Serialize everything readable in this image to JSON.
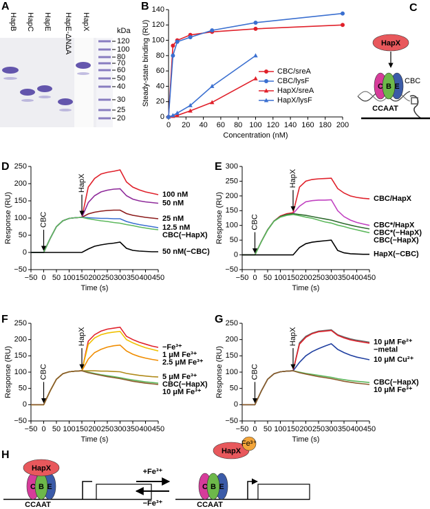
{
  "panel_a": {
    "label": "A",
    "lanes": [
      "HapB",
      "HapC",
      "HapE",
      "HapE-ΔNΔA",
      "HapX"
    ],
    "unit": "kDa",
    "markers": [
      120,
      100,
      80,
      70,
      60,
      50,
      40,
      30,
      25,
      20
    ]
  },
  "panel_c": {
    "label": "C",
    "protein": "HapX",
    "subunits": [
      "C",
      "B",
      "E"
    ],
    "complex": "CBC",
    "motif": "CCAAT"
  },
  "panel_h": {
    "label": "H",
    "left": {
      "protein": "HapX",
      "subunits": [
        "C",
        "B",
        "E"
      ],
      "motif": "CCAAT"
    },
    "forward": "+Fe³⁺",
    "reverse": "−Fe³⁺",
    "right": {
      "protein": "HapX",
      "ligand": "Fe³⁺",
      "subunits": [
        "C",
        "B",
        "E"
      ],
      "motif": "CCAAT"
    }
  },
  "chart_data": [
    {
      "type": "line",
      "panel_label": "B",
      "xlabel": "Concentration (nM)",
      "ylabel": "Steady-state binding (RU)",
      "x": [
        0,
        5,
        10,
        25,
        50,
        100,
        200
      ],
      "xlim": [
        0,
        200
      ],
      "xticks": [
        0,
        20,
        40,
        60,
        80,
        100,
        120,
        140,
        160,
        180,
        200
      ],
      "ylim": [
        0,
        140
      ],
      "yticks": [
        0,
        20,
        40,
        60,
        80,
        100,
        120,
        140
      ],
      "legend": "center right",
      "series": [
        {
          "name": "CBC/sreA",
          "color": "#e0202a",
          "marker": "circle",
          "values": [
            0,
            93,
            100,
            107,
            111,
            115,
            120
          ]
        },
        {
          "name": "CBC/lysF",
          "color": "#3a6fd0",
          "marker": "circle",
          "values": [
            0,
            80,
            98,
            104,
            113,
            123,
            135
          ]
        },
        {
          "name": "HapX/sreA",
          "color": "#e0202a",
          "marker": "triangle",
          "values": [
            0,
            1,
            2,
            8,
            19,
            50,
            null
          ]
        },
        {
          "name": "HapX/lysF",
          "color": "#3a6fd0",
          "marker": "triangle",
          "values": [
            0,
            2,
            5,
            15,
            40,
            80,
            null
          ]
        }
      ]
    },
    {
      "type": "line",
      "panel_label": "D",
      "xlabel": "Time (s)",
      "ylabel": "Response (RU)",
      "x": [
        -50,
        -25,
        0,
        25,
        50,
        75,
        100,
        125,
        150,
        175,
        200,
        225,
        250,
        275,
        300,
        325,
        350,
        375,
        400,
        425,
        450
      ],
      "xlim": [
        -50,
        450
      ],
      "xticks": [
        {
          "value": -50,
          "label": "−50"
        },
        0,
        50,
        100,
        150,
        200,
        250,
        300,
        350,
        400,
        450
      ],
      "ylim": [
        -50,
        250
      ],
      "yticks": [
        {
          "value": -50,
          "label": "−50"
        },
        0,
        50,
        100,
        150,
        200,
        250
      ],
      "legend": "right",
      "annotations": [
        {
          "text": "CBC",
          "x": 0
        },
        {
          "text": "HapX",
          "x": 150
        }
      ],
      "series": [
        {
          "name": "100 nM",
          "color": "#e0202a",
          "values": [
            0,
            0,
            0,
            40,
            75,
            92,
            99,
            101,
            102,
            190,
            215,
            228,
            233,
            236,
            240,
            205,
            190,
            182,
            176,
            172,
            168
          ]
        },
        {
          "name": "50 nM",
          "color": "#8e2a9a",
          "values": [
            0,
            0,
            0,
            40,
            75,
            92,
            99,
            101,
            102,
            145,
            165,
            176,
            181,
            184,
            185,
            165,
            155,
            150,
            147,
            145,
            143
          ]
        },
        {
          "name": "25 nM",
          "color": "#8b1a1a",
          "values": [
            0,
            0,
            0,
            40,
            75,
            92,
            99,
            101,
            102,
            112,
            117,
            120,
            122,
            123,
            123,
            113,
            108,
            105,
            102,
            100,
            98
          ]
        },
        {
          "name": "12.5 nM",
          "color": "#3a6fd0",
          "values": [
            0,
            0,
            0,
            40,
            75,
            92,
            99,
            101,
            102,
            101,
            100,
            99,
            99,
            98,
            98,
            90,
            85,
            81,
            78,
            75,
            72
          ]
        },
        {
          "name": "CBC(−HapX)",
          "color": "#5cb85c",
          "values": [
            0,
            0,
            0,
            40,
            75,
            92,
            99,
            101,
            102,
            98,
            95,
            92,
            90,
            87,
            85,
            81,
            78,
            74,
            71,
            68,
            66
          ]
        },
        {
          "name": "50 nM(−CBC)",
          "color": "#000000",
          "values": [
            0,
            0,
            0,
            0,
            0,
            0,
            0,
            0,
            0,
            10,
            18,
            22,
            25,
            27,
            30,
            12,
            6,
            4,
            3,
            2,
            2
          ]
        }
      ]
    },
    {
      "type": "line",
      "panel_label": "E",
      "xlabel": "Time (s)",
      "ylabel": "Response (RU)",
      "x": [
        -50,
        -25,
        0,
        25,
        50,
        75,
        100,
        125,
        150,
        175,
        200,
        225,
        250,
        275,
        300,
        325,
        350,
        375,
        400,
        425,
        450
      ],
      "xlim": [
        -50,
        450
      ],
      "xticks": [
        {
          "value": -50,
          "label": "−50"
        },
        0,
        50,
        100,
        150,
        200,
        250,
        300,
        350,
        400,
        450
      ],
      "ylim": [
        -50,
        300
      ],
      "yticks": [
        {
          "value": -50,
          "label": "−50"
        },
        0,
        50,
        100,
        150,
        200,
        250,
        300
      ],
      "legend": "right",
      "annotations": [
        {
          "text": "CBC",
          "x": 0
        },
        {
          "text": "HapX",
          "x": 150
        }
      ],
      "series": [
        {
          "name": "CBC/HapX",
          "color": "#e0202a",
          "values": [
            0,
            0,
            0,
            45,
            85,
            115,
            132,
            140,
            143,
            230,
            250,
            256,
            258,
            259,
            260,
            225,
            210,
            200,
            195,
            192,
            190
          ]
        },
        {
          "name": "CBC*/HapX",
          "color": "#c040c0",
          "values": [
            0,
            0,
            0,
            45,
            85,
            115,
            130,
            137,
            140,
            165,
            180,
            184,
            186,
            186,
            187,
            150,
            130,
            118,
            110,
            105,
            100
          ]
        },
        {
          "name": "CBC*(−HapX)",
          "color": "#2e6b2e",
          "values": [
            0,
            0,
            0,
            45,
            85,
            115,
            130,
            137,
            140,
            137,
            134,
            130,
            126,
            122,
            118,
            112,
            106,
            101,
            96,
            92,
            88
          ]
        },
        {
          "name": "CBC(−HapX)",
          "color": "#5cb85c",
          "values": [
            0,
            0,
            0,
            44,
            84,
            114,
            128,
            134,
            137,
            133,
            128,
            124,
            118,
            112,
            108,
            101,
            96,
            90,
            85,
            80,
            75
          ]
        },
        {
          "name": "HapX(−CBC)",
          "color": "#000000",
          "values": [
            0,
            0,
            0,
            0,
            0,
            0,
            0,
            0,
            0,
            25,
            38,
            43,
            46,
            48,
            50,
            15,
            7,
            4,
            3,
            2,
            2
          ]
        }
      ]
    },
    {
      "type": "line",
      "panel_label": "F",
      "xlabel": "Time (s)",
      "ylabel": "Response (RU)",
      "x": [
        -50,
        -25,
        0,
        25,
        50,
        75,
        100,
        125,
        150,
        175,
        200,
        225,
        250,
        275,
        300,
        325,
        350,
        375,
        400,
        425,
        450
      ],
      "xlim": [
        -50,
        450
      ],
      "xticks": [
        {
          "value": -50,
          "label": "−50"
        },
        0,
        50,
        100,
        150,
        200,
        250,
        300,
        350,
        400,
        450
      ],
      "ylim": [
        -50,
        250
      ],
      "yticks": [
        {
          "value": -50,
          "label": "−50"
        },
        0,
        50,
        100,
        150,
        200,
        250
      ],
      "legend": "right",
      "annotations": [
        {
          "text": "CBC",
          "x": 0
        },
        {
          "text": "HapX",
          "x": 150
        }
      ],
      "series": [
        {
          "name": "−Fe³⁺",
          "color": "#e0202a",
          "values": [
            0,
            0,
            0,
            42,
            78,
            95,
            101,
            103,
            104,
            195,
            215,
            226,
            232,
            235,
            238,
            210,
            200,
            192,
            186,
            180,
            176
          ]
        },
        {
          "name": "1 μM Fe³⁺",
          "color": "#f0c000",
          "values": [
            0,
            0,
            0,
            42,
            78,
            95,
            101,
            103,
            104,
            185,
            205,
            215,
            220,
            223,
            225,
            200,
            190,
            182,
            175,
            170,
            165
          ]
        },
        {
          "name": "2.5 μM Fe³⁺",
          "color": "#f08c00",
          "values": [
            0,
            0,
            0,
            42,
            78,
            95,
            101,
            103,
            104,
            140,
            160,
            170,
            177,
            181,
            183,
            165,
            155,
            148,
            143,
            139,
            136
          ]
        },
        {
          "name": "5 μM Fe³⁺",
          "color": "#b08a1a",
          "values": [
            0,
            0,
            0,
            42,
            78,
            95,
            101,
            103,
            104,
            104,
            104,
            103,
            103,
            102,
            101,
            96,
            93,
            90,
            88,
            86,
            85
          ]
        },
        {
          "name": "CBC(−HapX)",
          "color": "#5cb85c",
          "values": [
            0,
            0,
            0,
            42,
            78,
            95,
            101,
            103,
            104,
            100,
            96,
            92,
            89,
            86,
            83,
            79,
            76,
            73,
            70,
            68,
            66
          ]
        },
        {
          "name": "10 μM Fe³⁺",
          "color": "#8b5a2b",
          "values": [
            0,
            0,
            0,
            42,
            78,
            95,
            101,
            103,
            104,
            98,
            94,
            90,
            86,
            83,
            80,
            76,
            72,
            69,
            66,
            64,
            62
          ]
        }
      ]
    },
    {
      "type": "line",
      "panel_label": "G",
      "xlabel": "Time (s)",
      "ylabel": "Response (RU)",
      "x": [
        -50,
        -25,
        0,
        25,
        50,
        75,
        100,
        125,
        150,
        175,
        200,
        225,
        250,
        275,
        300,
        325,
        350,
        375,
        400,
        425,
        450
      ],
      "xlim": [
        -50,
        450
      ],
      "xticks": [
        {
          "value": -50,
          "label": "−50"
        },
        0,
        50,
        100,
        150,
        200,
        250,
        300,
        350,
        400,
        450
      ],
      "ylim": [
        -50,
        250
      ],
      "yticks": [
        {
          "value": -50,
          "label": "−50"
        },
        0,
        50,
        100,
        150,
        200,
        250
      ],
      "legend": "right",
      "annotations": [
        {
          "text": "CBC",
          "x": 0
        },
        {
          "text": "HapX",
          "x": 150
        }
      ],
      "series": [
        {
          "name": "10 μM Fe²⁺",
          "color": "#666666",
          "values": [
            0,
            0,
            0,
            42,
            78,
            95,
            101,
            103,
            104,
            190,
            210,
            220,
            226,
            228,
            230,
            215,
            208,
            202,
            198,
            195,
            192
          ]
        },
        {
          "name": "−metal",
          "color": "#e0202a",
          "values": [
            0,
            0,
            0,
            42,
            78,
            95,
            101,
            103,
            104,
            186,
            207,
            218,
            224,
            226,
            228,
            213,
            205,
            199,
            195,
            192,
            189
          ]
        },
        {
          "name": "10 μM Cu²⁺",
          "color": "#1f3fa0",
          "values": [
            0,
            0,
            0,
            42,
            78,
            95,
            101,
            103,
            104,
            130,
            150,
            163,
            172,
            180,
            187,
            170,
            160,
            152,
            146,
            142,
            138
          ]
        },
        {
          "name": "CBC(−HapX)",
          "color": "#5cb85c",
          "values": [
            0,
            0,
            0,
            42,
            78,
            95,
            101,
            103,
            104,
            100,
            96,
            93,
            90,
            87,
            84,
            80,
            77,
            74,
            72,
            70,
            68
          ]
        },
        {
          "name": "10 μM Fe³⁺",
          "color": "#8b5a2b",
          "values": [
            0,
            0,
            0,
            42,
            78,
            95,
            101,
            103,
            104,
            98,
            94,
            90,
            86,
            83,
            80,
            76,
            72,
            69,
            66,
            64,
            62
          ]
        }
      ]
    }
  ]
}
